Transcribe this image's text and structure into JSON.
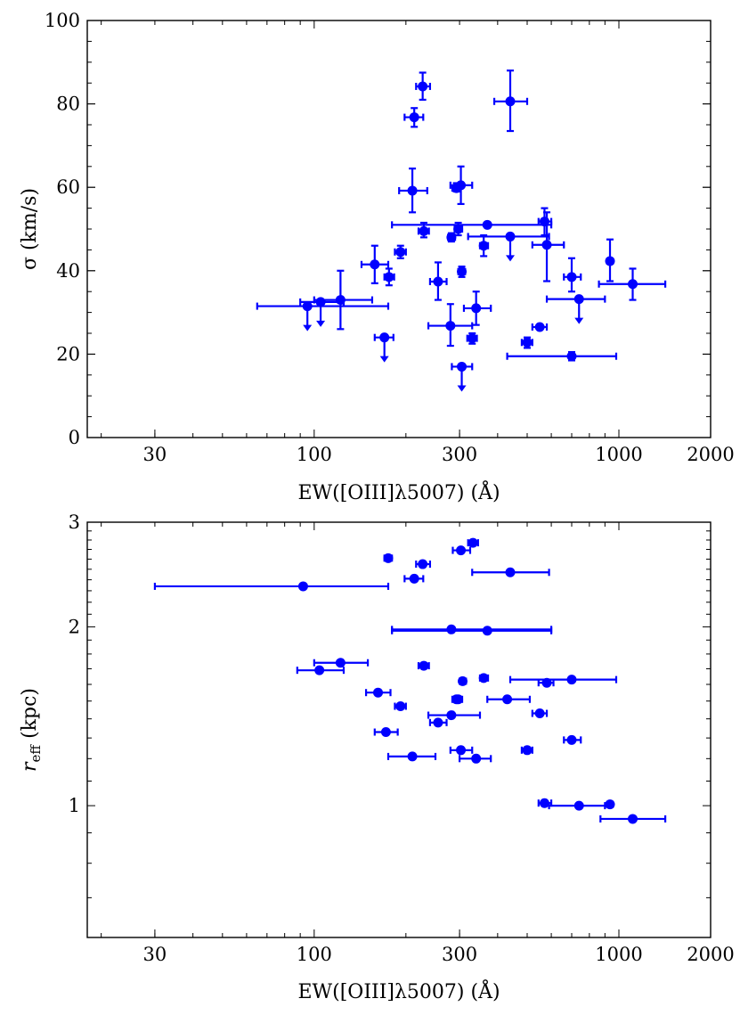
{
  "figure": {
    "panels": [
      {
        "xlabel": "EW([OIII]λ5007) (Å)",
        "ylabel": "σ (km/s)"
      },
      {
        "xlabel": "EW([OIII]λ5007) (Å)",
        "ylabel": "r_eff (kpc)"
      }
    ]
  },
  "chart_data": [
    {
      "type": "scatter",
      "title": "",
      "xlabel": "EW([OIII]λ5007) (Å)",
      "ylabel": "σ (km/s)",
      "xscale": "log",
      "xlim": [
        18,
        2000
      ],
      "ylim": [
        0,
        100
      ],
      "xticks": [
        30,
        100,
        300,
        1000,
        2000
      ],
      "xtick_labels": [
        "30",
        "100",
        "300",
        "1000",
        "2000"
      ],
      "yticks": [
        0,
        20,
        40,
        60,
        80,
        100
      ],
      "ytick_labels": [
        "0",
        "20",
        "40",
        "60",
        "80",
        "100"
      ],
      "color": "#0000ff",
      "points": [
        {
          "x": 95,
          "y": 31.5,
          "xerr": [
            65,
            175
          ],
          "yerr": [
            0,
            0
          ],
          "upper_limit": true
        },
        {
          "x": 105,
          "y": 32.5,
          "xerr": [
            90,
            125
          ],
          "yerr": [
            0,
            0
          ],
          "upper_limit": true
        },
        {
          "x": 122,
          "y": 33,
          "xerr": [
            100,
            155
          ],
          "yerr": [
            26,
            40
          ]
        },
        {
          "x": 170,
          "y": 24,
          "xerr": [
            158,
            182
          ],
          "yerr": [
            0,
            0
          ],
          "upper_limit": true
        },
        {
          "x": 158,
          "y": 41.5,
          "xerr": [
            143,
            175
          ],
          "yerr": [
            37,
            46
          ]
        },
        {
          "x": 176,
          "y": 38.5,
          "xerr": [
            170,
            183
          ],
          "yerr": [
            36.5,
            40.5
          ]
        },
        {
          "x": 192,
          "y": 44.5,
          "xerr": [
            184,
            200
          ],
          "yerr": [
            43,
            46
          ]
        },
        {
          "x": 210,
          "y": 59.2,
          "xerr": [
            190,
            235
          ],
          "yerr": [
            54,
            64.5
          ]
        },
        {
          "x": 213,
          "y": 76.8,
          "xerr": [
            198,
            228
          ],
          "yerr": [
            74.5,
            79
          ]
        },
        {
          "x": 227,
          "y": 84.2,
          "xerr": [
            216,
            240
          ],
          "yerr": [
            81,
            87.5
          ]
        },
        {
          "x": 229,
          "y": 49.5,
          "xerr": [
            220,
            238
          ],
          "yerr": [
            48,
            51.5
          ]
        },
        {
          "x": 255,
          "y": 37.4,
          "xerr": [
            240,
            272
          ],
          "yerr": [
            33,
            42
          ]
        },
        {
          "x": 280,
          "y": 26.8,
          "xerr": [
            237,
            330
          ],
          "yerr": [
            22,
            32
          ]
        },
        {
          "x": 282,
          "y": 48,
          "xerr": [
            275,
            290
          ],
          "yerr": [
            47,
            49
          ]
        },
        {
          "x": 293,
          "y": 59.8,
          "xerr": [
            284,
            302
          ],
          "yerr": [
            59,
            61
          ]
        },
        {
          "x": 297,
          "y": 50,
          "xerr": [
            289,
            306
          ],
          "yerr": [
            48.5,
            51.5
          ]
        },
        {
          "x": 303,
          "y": 60.5,
          "xerr": [
            280,
            330
          ],
          "yerr": [
            56,
            65
          ]
        },
        {
          "x": 305,
          "y": 17,
          "xerr": [
            283,
            330
          ],
          "yerr": [
            0,
            0
          ],
          "upper_limit": true
        },
        {
          "x": 305,
          "y": 39.8,
          "xerr": [
            297,
            313
          ],
          "yerr": [
            38.5,
            41
          ]
        },
        {
          "x": 330,
          "y": 23.8,
          "xerr": [
            318,
            342
          ],
          "yerr": [
            22.5,
            25
          ]
        },
        {
          "x": 340,
          "y": 31,
          "xerr": [
            310,
            380
          ],
          "yerr": [
            27,
            35
          ]
        },
        {
          "x": 360,
          "y": 46,
          "xerr": [
            350,
            372
          ],
          "yerr": [
            43.5,
            48.5
          ]
        },
        {
          "x": 370,
          "y": 51,
          "xerr": [
            180,
            600
          ],
          "yerr": [
            51,
            51
          ]
        },
        {
          "x": 440,
          "y": 48.2,
          "xerr": [
            320,
            590
          ],
          "yerr": [
            0,
            0
          ],
          "upper_limit": true
        },
        {
          "x": 440,
          "y": 80.6,
          "xerr": [
            390,
            500
          ],
          "yerr": [
            73.5,
            88
          ]
        },
        {
          "x": 500,
          "y": 22.8,
          "xerr": [
            480,
            520
          ],
          "yerr": [
            21.5,
            24
          ]
        },
        {
          "x": 550,
          "y": 26.5,
          "xerr": [
            520,
            580
          ],
          "yerr": [
            26,
            27
          ]
        },
        {
          "x": 570,
          "y": 51.8,
          "xerr": [
            545,
            600
          ],
          "yerr": [
            48.5,
            55
          ]
        },
        {
          "x": 580,
          "y": 46.2,
          "xerr": [
            520,
            660
          ],
          "yerr": [
            37.5,
            54
          ]
        },
        {
          "x": 700,
          "y": 19.5,
          "xerr": [
            430,
            980
          ],
          "yerr": [
            18.5,
            20.5
          ]
        },
        {
          "x": 700,
          "y": 38.5,
          "xerr": [
            660,
            750
          ],
          "yerr": [
            35,
            43
          ]
        },
        {
          "x": 740,
          "y": 33.2,
          "xerr": [
            580,
            900
          ],
          "yerr": [
            0,
            0
          ],
          "upper_limit": true
        },
        {
          "x": 935,
          "y": 42.3,
          "xerr": [
            915,
            955
          ],
          "yerr": [
            37.5,
            47.5
          ]
        },
        {
          "x": 1110,
          "y": 36.8,
          "xerr": [
            860,
            1420
          ],
          "yerr": [
            33,
            40.5
          ]
        }
      ]
    },
    {
      "type": "scatter",
      "title": "",
      "xlabel": "EW([OIII]λ5007) (Å)",
      "ylabel": "r_eff (kpc)",
      "xscale": "log",
      "yscale": "log",
      "xlim": [
        18,
        2000
      ],
      "ylim": [
        0.6,
        3
      ],
      "xticks": [
        30,
        100,
        300,
        1000,
        2000
      ],
      "xtick_labels": [
        "30",
        "100",
        "300",
        "1000",
        "2000"
      ],
      "yticks": [
        1,
        2,
        3
      ],
      "ytick_labels": [
        "1",
        "2",
        "3"
      ],
      "color": "#0000ff",
      "points": [
        {
          "x": 92,
          "y": 2.34,
          "xerr": [
            30,
            175
          ]
        },
        {
          "x": 104,
          "y": 1.69,
          "xerr": [
            88,
            125
          ]
        },
        {
          "x": 122,
          "y": 1.74,
          "xerr": [
            100,
            150
          ]
        },
        {
          "x": 162,
          "y": 1.55,
          "xerr": [
            148,
            178
          ]
        },
        {
          "x": 172,
          "y": 1.33,
          "xerr": [
            158,
            188
          ]
        },
        {
          "x": 175,
          "y": 2.61,
          "xerr": [
            170,
            180
          ]
        },
        {
          "x": 192,
          "y": 1.47,
          "xerr": [
            184,
            200
          ]
        },
        {
          "x": 210,
          "y": 1.21,
          "xerr": [
            175,
            250
          ]
        },
        {
          "x": 213,
          "y": 2.41,
          "xerr": [
            198,
            228
          ]
        },
        {
          "x": 227,
          "y": 2.55,
          "xerr": [
            216,
            240
          ]
        },
        {
          "x": 229,
          "y": 1.72,
          "xerr": [
            220,
            238
          ]
        },
        {
          "x": 255,
          "y": 1.38,
          "xerr": [
            240,
            272
          ]
        },
        {
          "x": 282,
          "y": 1.42,
          "xerr": [
            237,
            350
          ]
        },
        {
          "x": 282,
          "y": 1.98,
          "xerr": [
            180,
            600
          ]
        },
        {
          "x": 293,
          "y": 1.51,
          "xerr": [
            284,
            302
          ]
        },
        {
          "x": 297,
          "y": 1.51,
          "xerr": [
            289,
            306
          ]
        },
        {
          "x": 303,
          "y": 1.24,
          "xerr": [
            280,
            330
          ]
        },
        {
          "x": 303,
          "y": 2.69,
          "xerr": [
            285,
            325
          ]
        },
        {
          "x": 307,
          "y": 1.62,
          "xerr": [
            300,
            315
          ]
        },
        {
          "x": 332,
          "y": 2.77,
          "xerr": [
            320,
            345
          ]
        },
        {
          "x": 340,
          "y": 1.2,
          "xerr": [
            300,
            380
          ]
        },
        {
          "x": 360,
          "y": 1.64,
          "xerr": [
            350,
            372
          ]
        },
        {
          "x": 370,
          "y": 1.97,
          "xerr": [
            180,
            600
          ]
        },
        {
          "x": 430,
          "y": 1.51,
          "xerr": [
            370,
            510
          ]
        },
        {
          "x": 440,
          "y": 2.47,
          "xerr": [
            330,
            590
          ]
        },
        {
          "x": 500,
          "y": 1.24,
          "xerr": [
            480,
            520
          ]
        },
        {
          "x": 550,
          "y": 1.43,
          "xerr": [
            520,
            580
          ]
        },
        {
          "x": 570,
          "y": 1.01,
          "xerr": [
            545,
            600
          ]
        },
        {
          "x": 580,
          "y": 1.61,
          "xerr": [
            545,
            610
          ]
        },
        {
          "x": 700,
          "y": 1.29,
          "xerr": [
            660,
            750
          ]
        },
        {
          "x": 700,
          "y": 1.63,
          "xerr": [
            440,
            980
          ]
        },
        {
          "x": 740,
          "y": 1.0,
          "xerr": [
            590,
            900
          ]
        },
        {
          "x": 935,
          "y": 1.005,
          "xerr": [
            915,
            955
          ]
        },
        {
          "x": 1110,
          "y": 0.95,
          "xerr": [
            870,
            1420
          ]
        }
      ]
    }
  ]
}
